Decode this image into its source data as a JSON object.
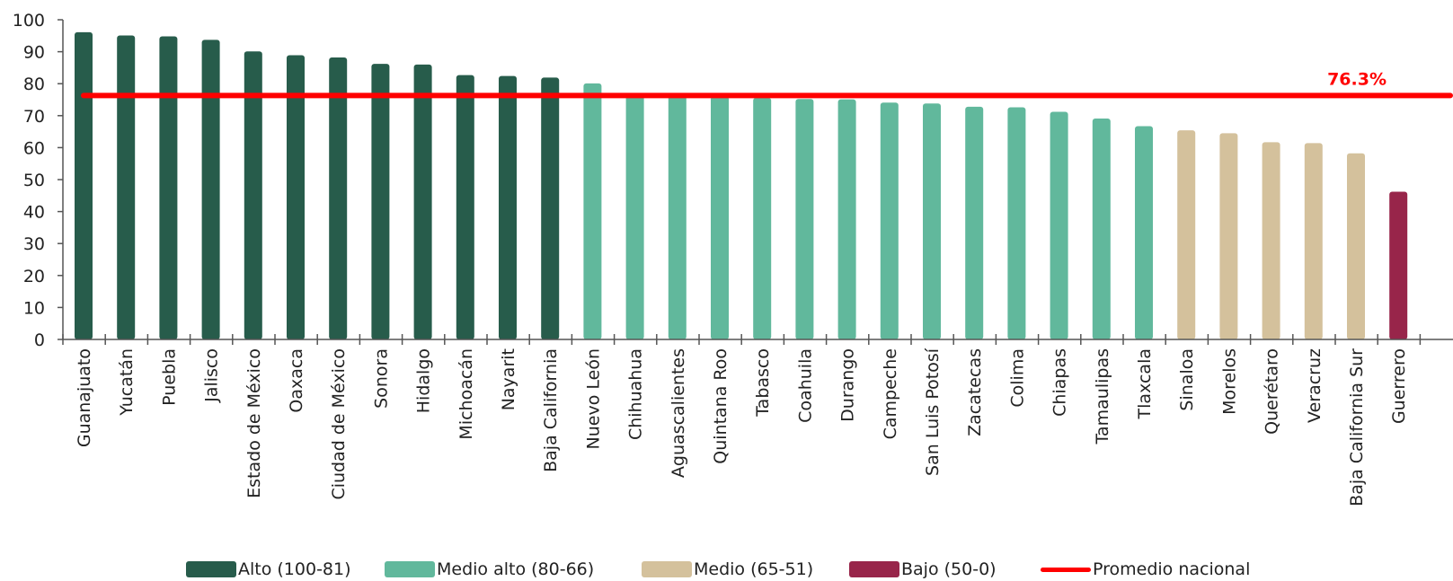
{
  "chart_data": {
    "type": "bar",
    "title": "",
    "xlabel": "",
    "ylabel": "",
    "ylim": [
      0,
      100
    ],
    "yticks": [
      0,
      10,
      20,
      30,
      40,
      50,
      60,
      70,
      80,
      90,
      100
    ],
    "grid": false,
    "categories": [
      "Guanajuato",
      "Yucatán",
      "Puebla",
      "Jalisco",
      "Estado de México",
      "Oaxaca",
      "Ciudad de México",
      "Sonora",
      "Hidalgo",
      "Michoacán",
      "Nayarit",
      "Baja California",
      "Nuevo León",
      "Chihuahua",
      "Aguascalientes",
      "Quintana Roo",
      "Tabasco",
      "Coahuila",
      "Durango",
      "Campeche",
      "San Luis Potosí",
      "Zacatecas",
      "Colima",
      "Chiapas",
      "Tamaulipas",
      "Tlaxcala",
      "Sinaloa",
      "Morelos",
      "Querétaro",
      "Veracruz",
      "Baja California Sur",
      "Guerrero"
    ],
    "values": [
      96.1,
      95.1,
      94.8,
      93.7,
      90.1,
      88.9,
      88.2,
      86.2,
      86.0,
      82.7,
      82.4,
      81.9,
      80.1,
      77.1,
      76.2,
      76.1,
      75.6,
      75.2,
      75.1,
      74.1,
      73.8,
      72.8,
      72.6,
      71.2,
      69.1,
      66.7,
      65.4,
      64.5,
      61.7,
      61.4,
      58.2,
      46.2
    ],
    "groups": [
      "alto",
      "alto",
      "alto",
      "alto",
      "alto",
      "alto",
      "alto",
      "alto",
      "alto",
      "alto",
      "alto",
      "alto",
      "medio_alto",
      "medio_alto",
      "medio_alto",
      "medio_alto",
      "medio_alto",
      "medio_alto",
      "medio_alto",
      "medio_alto",
      "medio_alto",
      "medio_alto",
      "medio_alto",
      "medio_alto",
      "medio_alto",
      "medio_alto",
      "medio",
      "medio",
      "medio",
      "medio",
      "medio",
      "bajo"
    ],
    "average": {
      "value": 76.3,
      "label": "76.3%",
      "color": "#ff0000"
    },
    "legend": {
      "placement": "bottom",
      "items": [
        {
          "key": "alto",
          "label": "Alto (100-81)",
          "color": "#275c4b"
        },
        {
          "key": "medio_alto",
          "label": "Medio alto (80-66)",
          "color": "#61b89c"
        },
        {
          "key": "medio",
          "label": "Medio (65-51)",
          "color": "#d4c19c"
        },
        {
          "key": "bajo",
          "label": "Bajo (50-0)",
          "color": "#98254a"
        },
        {
          "key": "promedio",
          "label": "Promedio nacional",
          "color": "#ff0000"
        }
      ]
    }
  }
}
